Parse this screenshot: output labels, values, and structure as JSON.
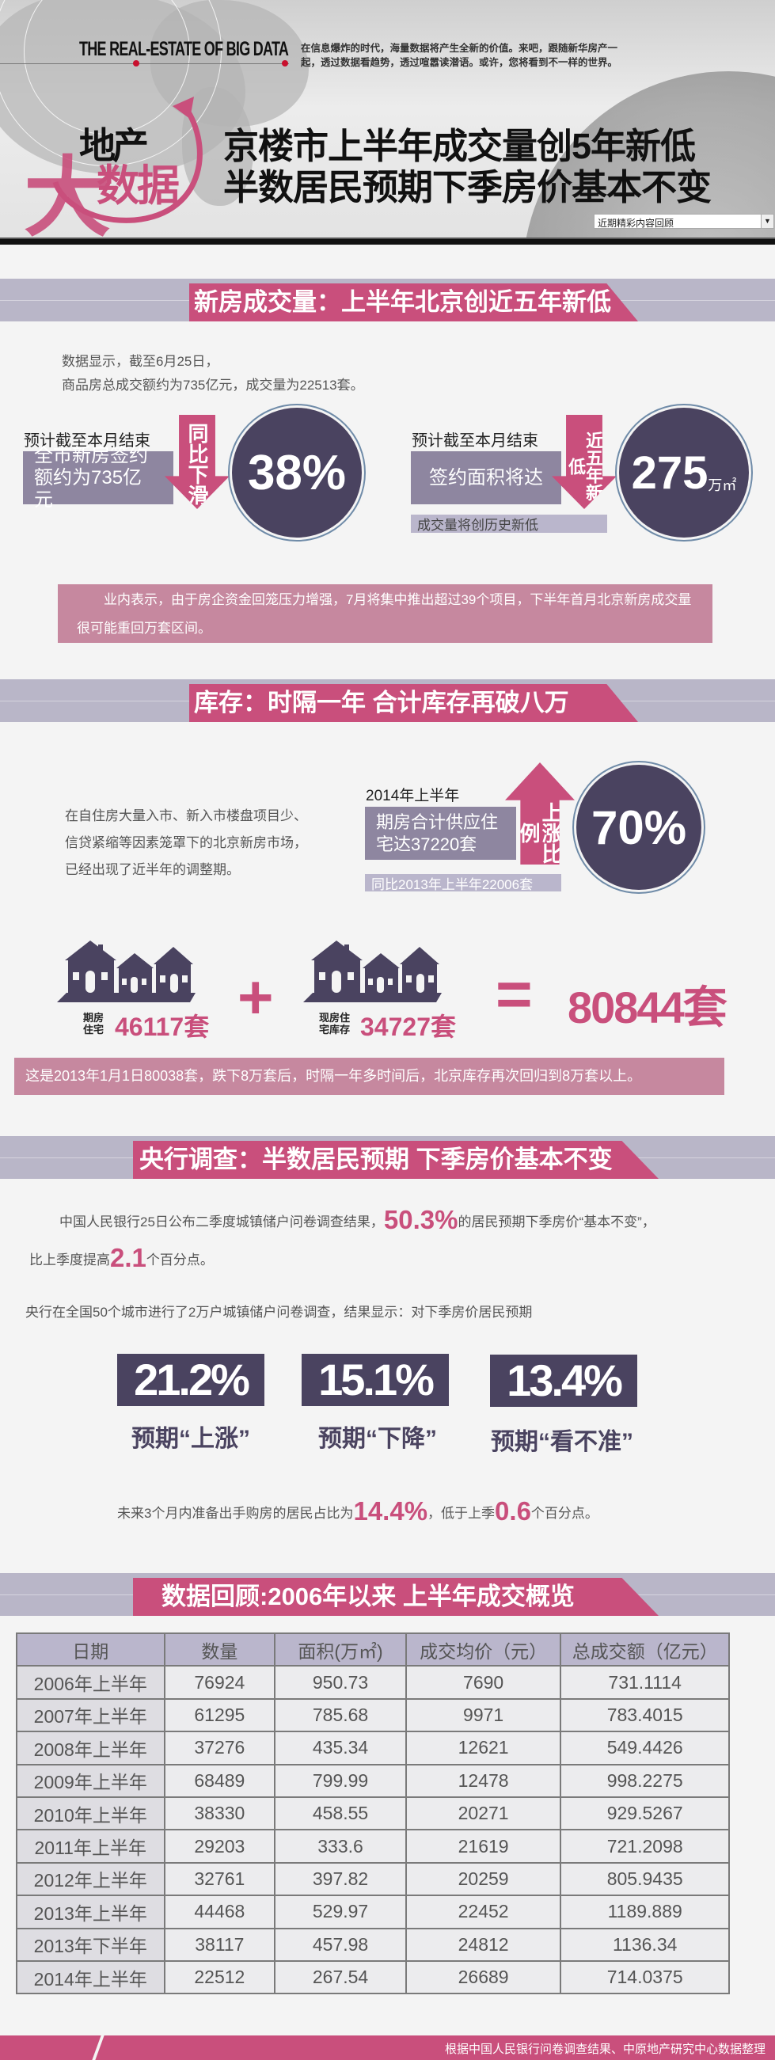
{
  "header": {
    "title_en": "THE  REAL-ESTATE OF BIG DATA",
    "desc_line1": "在信息爆炸的时代，海量数据将产生全新的价值。来吧，跟随新华房产一",
    "desc_line2": "起，透过数据看趋势，透过喧嚣读潜语。或许，您将看到不一样的世界。",
    "logo_top": "地产",
    "logo_big": "大",
    "logo_bottom": "数据",
    "title_line1": "京楼市上半年成交量创5年新低",
    "title_line2": "半数居民预期下季房价基本不变",
    "dropdown_value": "近期精彩内容回顾"
  },
  "section1": {
    "title": "新房成交量：上半年北京创近五年新低",
    "intro_line1": "数据显示，截至6月25日，",
    "intro_line2": "商品房总成交额约为735亿元，成交量为22513套。",
    "left": {
      "label": "预计截至本月结束",
      "box": "全市新房签约额约为735亿元",
      "arrow": "同比下滑",
      "value": "38%"
    },
    "right": {
      "label": "预计截至本月结束",
      "box": "签约面积将达",
      "arrow": "近五年新低",
      "value": "275",
      "unit": "万㎡",
      "sub": "成交量将创历史新低"
    },
    "note": "业内表示，由于房企资金回笼压力增强，7月将集中推出超过39个项目，下半年首月北京新房成交量很可能重回万套区间。"
  },
  "section2": {
    "title": "库存：时隔一年 合计库存再破八万",
    "text_line1": "在自住房大量入市、新入市楼盘项目少、",
    "text_line2": "信贷紧缩等因素笼罩下的北京新房市场，",
    "text_line3": "已经出现了近半年的调整期。",
    "period": "2014年上半年",
    "box": "期房合计供应住宅达37220套",
    "arrow": "上涨比例",
    "value": "70%",
    "sub": "同比2013年上半年22006套",
    "stock1_label": "期房住宅",
    "stock1_value": "46117套",
    "plus": "+",
    "stock2_label": "现房住宅库存",
    "stock2_value": "34727套",
    "equals": "=",
    "total": "80844套",
    "note": "这是2013年1月1日80038套，跌下8万套后，时隔一年多时间后，北京库存再次回归到8万套以上。"
  },
  "section3": {
    "title": "央行调查：半数居民预期 下季房价基本不变",
    "p1_a": "中国人民银行25日公布二季度城镇储户问卷调查结果，",
    "p1_hl": "50.3%",
    "p1_b": "的居民预期下季房价“基本不变”，",
    "p2_a": "比上季度提高",
    "p2_hl": "2.1",
    "p2_b": "个百分点。",
    "p3": "央行在全国50个城市进行了2万户城镇储户问卷调查，结果显示：对下季房价居民预期",
    "stats": [
      {
        "value": "21.2%",
        "label": "预期“上涨”"
      },
      {
        "value": "15.1%",
        "label": "预期“下降”"
      },
      {
        "value": "13.4%",
        "label": "预期“看不准”"
      }
    ],
    "p4_a": "未来3个月内准备出手购房的居民占比为",
    "p4_hl1": "14.4%",
    "p4_b": "，低于上季",
    "p4_hl2": "0.6",
    "p4_c": "个百分点。"
  },
  "section4": {
    "title": "数据回顾:2006年以来 上半年成交概览",
    "columns": [
      "日期",
      "数量",
      "面积(万㎡)",
      "成交均价（元）",
      "总成交额（亿元）"
    ],
    "rows": [
      [
        "2006年上半年",
        "76924",
        "950.73",
        "7690",
        "731.1114"
      ],
      [
        "2007年上半年",
        "61295",
        "785.68",
        "9971",
        "783.4015"
      ],
      [
        "2008年上半年",
        "37276",
        "435.34",
        "12621",
        "549.4426"
      ],
      [
        "2009年上半年",
        "68489",
        "799.99",
        "12478",
        "998.2275"
      ],
      [
        "2010年上半年",
        "38330",
        "458.55",
        "20271",
        "929.5267"
      ],
      [
        "2011年上半年",
        "29203",
        "333.6",
        "21619",
        "721.2098"
      ],
      [
        "2012年上半年",
        "32761",
        "397.82",
        "20259",
        "805.9435"
      ],
      [
        "2013年上半年",
        "44468",
        "529.97",
        "22452",
        "1189.889"
      ],
      [
        "2013年下半年",
        "38117",
        "457.98",
        "24812",
        "1136.34"
      ],
      [
        "2014年上半年",
        "22512",
        "267.54",
        "26689",
        "714.0375"
      ]
    ]
  },
  "footer": {
    "source": "根据中国人民银行问卷调查结果、中原地产研究中心数据整理"
  },
  "colors": {
    "accent": "#c94f7c",
    "dark": "#4a4360",
    "band": "#b9b6c8",
    "box": "#8e86a0",
    "note": "#c6889f"
  }
}
